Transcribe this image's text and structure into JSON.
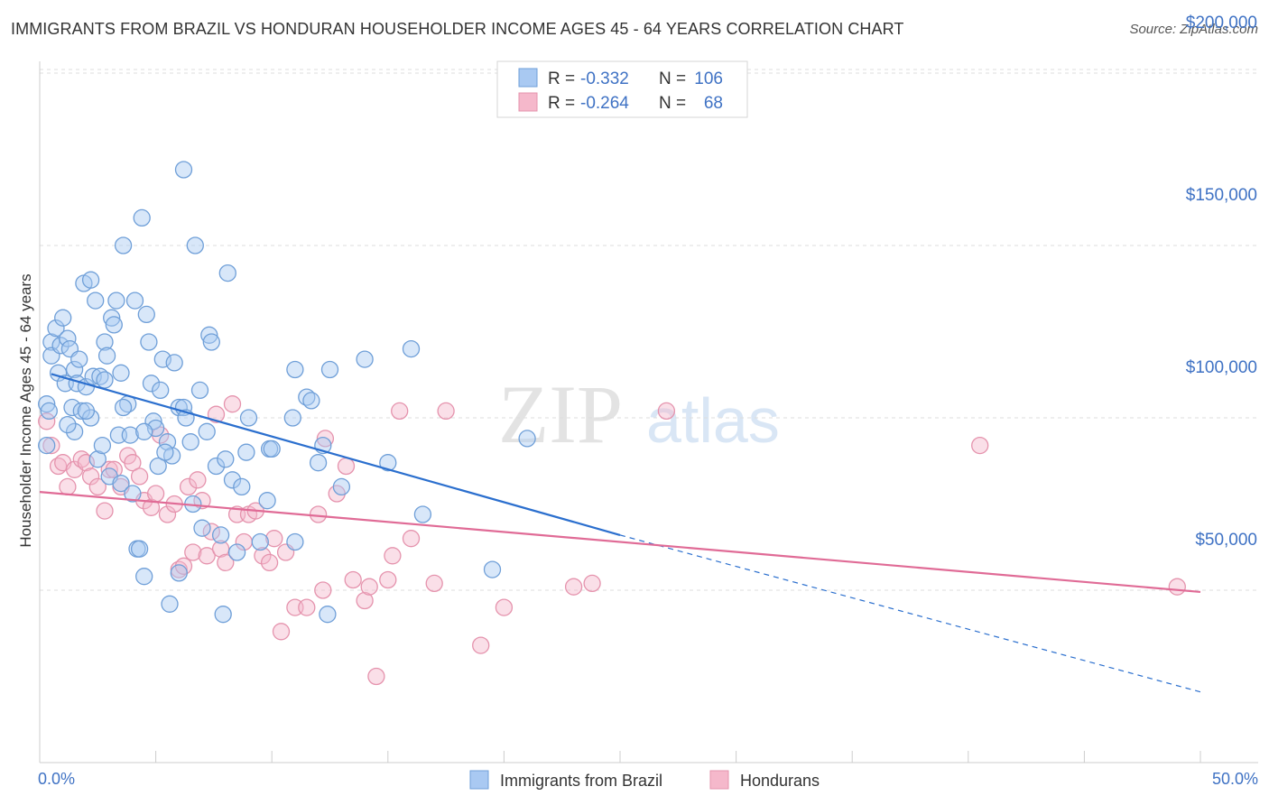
{
  "header": {
    "title": "IMMIGRANTS FROM BRAZIL VS HONDURAN HOUSEHOLDER INCOME AGES 45 - 64 YEARS CORRELATION CHART",
    "source": "Source: ZipAtlas.com"
  },
  "watermark": {
    "zip": "ZIP",
    "atlas": "atlas"
  },
  "colors": {
    "series1_fill": "#a9c9f2",
    "series1_stroke": "#6f9fd8",
    "series1_line": "#2b6fce",
    "series2_fill": "#f5b8cb",
    "series2_stroke": "#e593ad",
    "series2_line": "#e06b96",
    "value_text": "#3f72c4",
    "grid": "#dddddd"
  },
  "legend": {
    "rows": [
      {
        "r_label": "R =",
        "r_value": "-0.332",
        "n_label": "N =",
        "n_value": "106"
      },
      {
        "r_label": "R =",
        "r_value": "-0.264",
        "n_label": "N =",
        "n_value": "68"
      }
    ]
  },
  "bottom_legend": [
    "Immigrants from Brazil",
    "Hondurans"
  ],
  "chart_data": {
    "type": "scatter",
    "title": "IMMIGRANTS FROM BRAZIL VS HONDURAN HOUSEHOLDER INCOME AGES 45 - 64 YEARS CORRELATION CHART",
    "xlabel": "",
    "ylabel": "Householder Income Ages 45 - 64 years",
    "xlim": [
      0,
      50
    ],
    "ylim": [
      0,
      210000
    ],
    "x_tick_labels": [
      "0.0%",
      "50.0%"
    ],
    "y_ticks": [
      50000,
      100000,
      150000,
      200000
    ],
    "y_tick_labels": [
      "$50,000",
      "$100,000",
      "$150,000",
      "$200,000"
    ],
    "grid": true,
    "legend_position": "top-center",
    "series": [
      {
        "name": "Immigrants from Brazil",
        "r": -0.332,
        "n": 106,
        "trend": {
          "x0": 0.5,
          "y0": 112700,
          "x1": 25,
          "y1": 66000,
          "dashed_to_x": 50,
          "dashed_to_y": 20500
        },
        "points": [
          [
            0.3,
            104000
          ],
          [
            0.3,
            92000
          ],
          [
            0.4,
            102000
          ],
          [
            0.5,
            122000
          ],
          [
            0.5,
            118000
          ],
          [
            0.7,
            126000
          ],
          [
            0.8,
            113000
          ],
          [
            0.9,
            121000
          ],
          [
            1.0,
            129000
          ],
          [
            1.1,
            110000
          ],
          [
            1.2,
            123000
          ],
          [
            1.3,
            120000
          ],
          [
            1.4,
            103000
          ],
          [
            1.5,
            114000
          ],
          [
            1.5,
            96000
          ],
          [
            1.6,
            110000
          ],
          [
            1.7,
            117000
          ],
          [
            1.8,
            102000
          ],
          [
            1.9,
            139000
          ],
          [
            2.0,
            109000
          ],
          [
            2.2,
            140000
          ],
          [
            2.2,
            100000
          ],
          [
            2.3,
            112000
          ],
          [
            2.4,
            134000
          ],
          [
            2.5,
            88000
          ],
          [
            2.6,
            112000
          ],
          [
            2.7,
            92000
          ],
          [
            2.8,
            122000
          ],
          [
            2.8,
            111000
          ],
          [
            3.0,
            83000
          ],
          [
            3.1,
            129000
          ],
          [
            3.2,
            127000
          ],
          [
            3.3,
            134000
          ],
          [
            3.4,
            95000
          ],
          [
            3.5,
            113000
          ],
          [
            3.5,
            81000
          ],
          [
            3.6,
            150000
          ],
          [
            3.8,
            104000
          ],
          [
            3.9,
            95000
          ],
          [
            4.0,
            78000
          ],
          [
            4.1,
            134000
          ],
          [
            4.2,
            62000
          ],
          [
            4.3,
            62000
          ],
          [
            4.4,
            158000
          ],
          [
            4.5,
            54000
          ],
          [
            4.6,
            130000
          ],
          [
            4.7,
            122000
          ],
          [
            4.8,
            110000
          ],
          [
            4.9,
            99000
          ],
          [
            5.0,
            97000
          ],
          [
            5.1,
            86000
          ],
          [
            5.2,
            108000
          ],
          [
            5.3,
            117000
          ],
          [
            5.5,
            93000
          ],
          [
            5.6,
            46000
          ],
          [
            5.7,
            89000
          ],
          [
            5.8,
            116000
          ],
          [
            6.0,
            103000
          ],
          [
            6.0,
            55000
          ],
          [
            6.2,
            103000
          ],
          [
            6.2,
            172000
          ],
          [
            6.3,
            100000
          ],
          [
            6.5,
            93000
          ],
          [
            6.6,
            75000
          ],
          [
            6.7,
            150000
          ],
          [
            7.0,
            68000
          ],
          [
            7.2,
            96000
          ],
          [
            7.3,
            124000
          ],
          [
            7.4,
            122000
          ],
          [
            7.6,
            86000
          ],
          [
            7.8,
            66000
          ],
          [
            7.9,
            43000
          ],
          [
            8.0,
            88000
          ],
          [
            8.1,
            142000
          ],
          [
            8.3,
            82000
          ],
          [
            8.5,
            61000
          ],
          [
            8.7,
            80000
          ],
          [
            9.0,
            100000
          ],
          [
            9.5,
            64000
          ],
          [
            9.8,
            76000
          ],
          [
            9.9,
            91000
          ],
          [
            10.0,
            91000
          ],
          [
            10.9,
            100000
          ],
          [
            11.0,
            64000
          ],
          [
            11.0,
            114000
          ],
          [
            11.5,
            106000
          ],
          [
            11.7,
            105000
          ],
          [
            12.0,
            87000
          ],
          [
            12.2,
            92000
          ],
          [
            12.4,
            43000
          ],
          [
            12.5,
            114000
          ],
          [
            13.0,
            80000
          ],
          [
            14.0,
            117000
          ],
          [
            15.0,
            87000
          ],
          [
            16.0,
            120000
          ],
          [
            16.5,
            72000
          ],
          [
            19.5,
            56000
          ],
          [
            21.0,
            94000
          ],
          [
            4.5,
            96000
          ],
          [
            6.9,
            108000
          ],
          [
            3.6,
            103000
          ],
          [
            2.0,
            102000
          ],
          [
            1.2,
            98000
          ],
          [
            2.9,
            118000
          ],
          [
            5.4,
            90000
          ],
          [
            8.9,
            90000
          ]
        ]
      },
      {
        "name": "Hondurans",
        "r": -0.264,
        "n": 68,
        "trend": {
          "x0": 0,
          "y0": 78500,
          "x1": 50,
          "y1": 49500
        },
        "points": [
          [
            0.3,
            99000
          ],
          [
            0.5,
            92000
          ],
          [
            0.8,
            86000
          ],
          [
            1.0,
            87000
          ],
          [
            1.2,
            80000
          ],
          [
            1.5,
            85000
          ],
          [
            1.8,
            88000
          ],
          [
            2.0,
            87000
          ],
          [
            2.2,
            83000
          ],
          [
            2.5,
            80000
          ],
          [
            2.8,
            73000
          ],
          [
            3.0,
            85000
          ],
          [
            3.2,
            85000
          ],
          [
            3.5,
            80000
          ],
          [
            3.8,
            89000
          ],
          [
            4.0,
            87000
          ],
          [
            4.3,
            83000
          ],
          [
            4.5,
            76000
          ],
          [
            4.8,
            74000
          ],
          [
            5.0,
            78000
          ],
          [
            5.2,
            95000
          ],
          [
            5.5,
            72000
          ],
          [
            5.8,
            75000
          ],
          [
            6.0,
            56000
          ],
          [
            6.2,
            57000
          ],
          [
            6.4,
            80000
          ],
          [
            6.6,
            61000
          ],
          [
            6.8,
            82000
          ],
          [
            7.0,
            76000
          ],
          [
            7.2,
            60000
          ],
          [
            7.4,
            67000
          ],
          [
            7.6,
            101000
          ],
          [
            7.8,
            62000
          ],
          [
            8.0,
            58000
          ],
          [
            8.3,
            104000
          ],
          [
            8.5,
            72000
          ],
          [
            8.8,
            64000
          ],
          [
            9.0,
            72000
          ],
          [
            9.3,
            73000
          ],
          [
            9.6,
            60000
          ],
          [
            9.9,
            58000
          ],
          [
            10.1,
            65000
          ],
          [
            10.4,
            38000
          ],
          [
            10.6,
            61000
          ],
          [
            11.0,
            45000
          ],
          [
            11.5,
            45000
          ],
          [
            12.0,
            72000
          ],
          [
            12.3,
            94000
          ],
          [
            12.8,
            78000
          ],
          [
            13.2,
            86000
          ],
          [
            13.5,
            53000
          ],
          [
            14.0,
            47000
          ],
          [
            14.2,
            51000
          ],
          [
            14.5,
            25000
          ],
          [
            15.0,
            53000
          ],
          [
            15.2,
            60000
          ],
          [
            15.5,
            102000
          ],
          [
            16.0,
            65000
          ],
          [
            17.0,
            52000
          ],
          [
            17.5,
            102000
          ],
          [
            19.0,
            34000
          ],
          [
            20.0,
            45000
          ],
          [
            23.0,
            51000
          ],
          [
            23.8,
            52000
          ],
          [
            27.0,
            102000
          ],
          [
            40.5,
            92000
          ],
          [
            49.0,
            51000
          ],
          [
            12.2,
            50000
          ]
        ]
      }
    ]
  }
}
